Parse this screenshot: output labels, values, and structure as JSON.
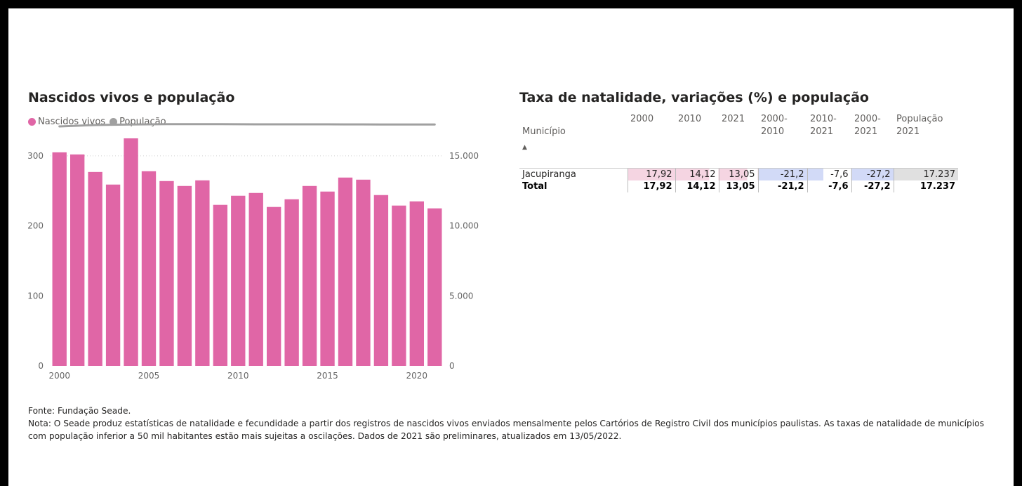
{
  "left_panel": {
    "title": "Nascidos vivos e população",
    "legend": [
      {
        "label": "Nascidos vivos",
        "color": "#e066a6"
      },
      {
        "label": "População",
        "color": "#a0a0a0"
      }
    ]
  },
  "chart_data": {
    "type": "bar",
    "title": "Nascidos vivos e população",
    "x": [
      2000,
      2001,
      2002,
      2003,
      2004,
      2005,
      2006,
      2007,
      2008,
      2009,
      2010,
      2011,
      2012,
      2013,
      2014,
      2015,
      2016,
      2017,
      2018,
      2019,
      2020,
      2021
    ],
    "x_ticks": [
      "2000",
      "2005",
      "2010",
      "2015",
      "2020"
    ],
    "series": [
      {
        "name": "Nascidos vivos",
        "type": "bar",
        "axis": "left",
        "color": "#e066a6",
        "values": [
          305,
          302,
          277,
          259,
          325,
          278,
          264,
          257,
          265,
          230,
          243,
          247,
          227,
          238,
          257,
          249,
          269,
          266,
          244,
          229,
          235,
          225
        ]
      },
      {
        "name": "População",
        "type": "line",
        "axis": "right",
        "color": "#a0a0a0",
        "values": [
          17100,
          17150,
          17200,
          17220,
          17240,
          17250,
          17260,
          17260,
          17260,
          17260,
          17255,
          17250,
          17250,
          17250,
          17250,
          17250,
          17245,
          17245,
          17243,
          17240,
          17238,
          17237
        ]
      }
    ],
    "y_left": {
      "ticks": [
        "0",
        "100",
        "200",
        "300"
      ],
      "lim": [
        0,
        330
      ]
    },
    "y_right": {
      "ticks": [
        "0",
        "5.000",
        "10.000",
        "15.000"
      ],
      "lim": [
        0,
        16500
      ]
    },
    "grid": "dotted at 300 / 15.000"
  },
  "right_panel": {
    "title": "Taxa de natalidade, variações (%) e população",
    "headers": [
      "Município",
      "2000",
      "2010",
      "2021",
      "2000-\n2010",
      "2010-\n2021",
      "2000-\n2021",
      "População\n2021"
    ],
    "sort_indicator": "▲",
    "rows": [
      {
        "name": "Jacupiranga",
        "values": [
          "17,92",
          "14,12",
          "13,05",
          "-21,2",
          "-7,6",
          "-27,2",
          "17.237"
        ]
      }
    ],
    "total": {
      "name": "Total",
      "values": [
        "17,92",
        "14,12",
        "13,05",
        "-21,2",
        "-7,6",
        "-27,2",
        "17.237"
      ]
    },
    "bar_colors": {
      "rate": "#f5d5e2",
      "variation": "#d2daf7",
      "population": "#e0e0e0"
    }
  },
  "footer": {
    "source": "Fonte: Fundação Seade.",
    "note": "Nota: O Seade produz estatísticas de natalidade e fecundidade a partir dos registros de nascidos vivos enviados mensalmente pelos Cartórios de Registro Civil dos municípios paulistas. As taxas de natalidade de municípios com população inferior a 50 mil habitantes estão mais sujeitas a oscilações. Dados de 2021 são preliminares, atualizados em 13/05/2022."
  }
}
